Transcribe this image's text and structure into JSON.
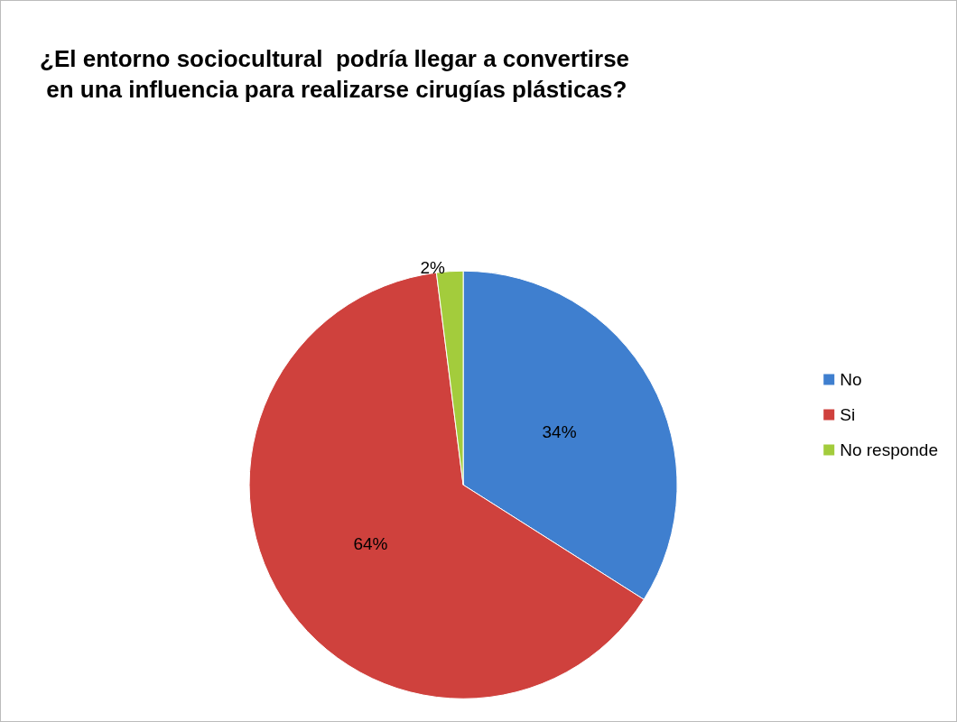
{
  "chart_data": {
    "type": "pie",
    "title": "¿El entorno sociocultural  podría llegar a convertirse\n en una influencia para realizarse cirugías plásticas?",
    "categories": [
      "No",
      "Si",
      "No responde"
    ],
    "values": [
      34,
      64,
      2
    ],
    "colors": [
      "#3f7fcf",
      "#cf413d",
      "#a3cc3c"
    ],
    "value_labels": [
      "34%",
      "64%",
      "2%"
    ],
    "legend": "right"
  }
}
